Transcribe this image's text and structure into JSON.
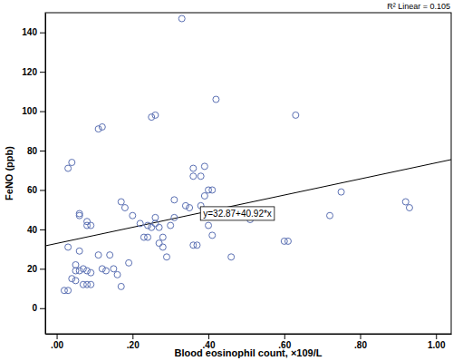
{
  "chart_data": {
    "type": "scatter",
    "x_label": "Blood eosinophil count, ×109/L",
    "y_label": "FeNO (ppb)",
    "annotation": "R² Linear = 0.105",
    "color": "#5b70b3",
    "marker": "circle",
    "fit": {
      "intercept": 32.87,
      "slope": 40.92,
      "label": "y=32.87+40.92*x",
      "color": "#000000"
    },
    "x": [
      0.02,
      0.03,
      0.03,
      0.03,
      0.04,
      0.04,
      0.05,
      0.05,
      0.05,
      0.06,
      0.06,
      0.06,
      0.06,
      0.07,
      0.07,
      0.08,
      0.08,
      0.08,
      0.08,
      0.09,
      0.09,
      0.09,
      0.11,
      0.11,
      0.12,
      0.12,
      0.13,
      0.14,
      0.15,
      0.16,
      0.17,
      0.17,
      0.18,
      0.19,
      0.2,
      0.22,
      0.23,
      0.24,
      0.24,
      0.25,
      0.25,
      0.26,
      0.26,
      0.26,
      0.27,
      0.27,
      0.28,
      0.28,
      0.29,
      0.3,
      0.31,
      0.31,
      0.33,
      0.34,
      0.35,
      0.36,
      0.36,
      0.36,
      0.37,
      0.38,
      0.38,
      0.39,
      0.39,
      0.4,
      0.41,
      0.4,
      0.41,
      0.42,
      0.46,
      0.51,
      0.6,
      0.61,
      0.63,
      0.72,
      0.75,
      0.92,
      0.93
    ],
    "values": [
      9,
      9,
      31,
      71,
      74,
      15,
      14,
      19,
      22,
      19,
      29,
      47,
      48,
      20,
      12,
      12,
      19,
      44,
      42,
      18,
      12,
      42,
      27,
      91,
      92,
      20,
      19,
      27,
      20,
      17,
      54,
      11,
      51,
      23,
      47,
      43,
      36,
      42,
      36,
      41,
      97,
      98,
      43,
      46,
      41,
      33,
      36,
      31,
      26,
      42,
      55,
      46,
      147,
      52,
      51,
      32,
      71,
      67,
      32,
      52,
      67,
      72,
      57,
      60,
      60,
      42,
      37,
      106,
      26,
      45,
      34,
      34,
      98,
      47,
      59,
      54,
      51
    ],
    "xlim": [
      -0.03,
      1.04
    ],
    "ylim": [
      -13,
      150
    ],
    "xticks": [
      {
        "value": 0,
        "label": ".00"
      },
      {
        "value": 0.2,
        "label": ".20"
      },
      {
        "value": 0.4,
        "label": ".40"
      },
      {
        "value": 0.6,
        "label": ".60"
      },
      {
        "value": 0.8,
        "label": ".80"
      },
      {
        "value": 1,
        "label": "1.00"
      }
    ],
    "yticks": [
      0,
      20,
      40,
      60,
      80,
      100,
      120,
      140
    ],
    "grid": false
  }
}
